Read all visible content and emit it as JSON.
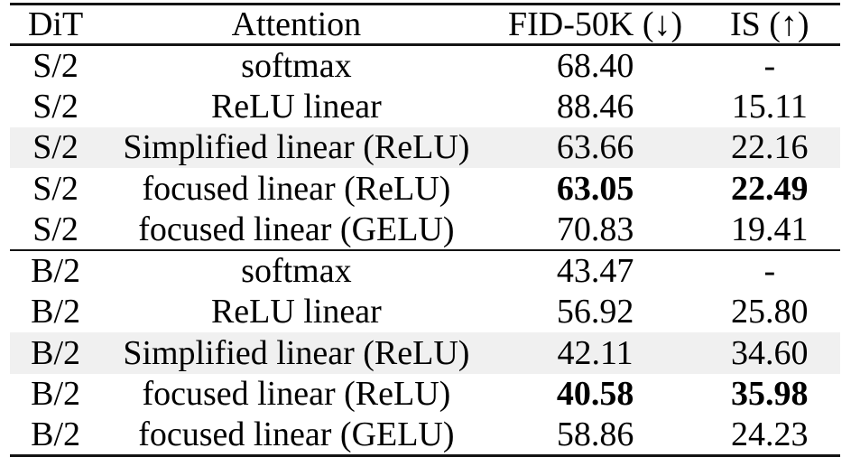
{
  "colors": {
    "rule": "#141414",
    "row_shade": "#f0f0f0",
    "text": "#000000",
    "background": "#ffffff"
  },
  "table": {
    "columns": {
      "dit": "DiT",
      "attention": "Attention",
      "fid": "FID-50K (↓)",
      "is_score": "IS (↑)"
    },
    "rows": [
      {
        "dit": "S/2",
        "attention": "softmax",
        "fid": "68.40",
        "is_score": "-"
      },
      {
        "dit": "S/2",
        "attention": "ReLU linear",
        "fid": "88.46",
        "is_score": "15.11"
      },
      {
        "dit": "S/2",
        "attention": "Simplified linear (ReLU)",
        "fid": "63.66",
        "is_score": "22.16"
      },
      {
        "dit": "S/2",
        "attention": "focused linear (ReLU)",
        "fid": "63.05",
        "is_score": "22.49"
      },
      {
        "dit": "S/2",
        "attention": "focused linear (GELU)",
        "fid": "70.83",
        "is_score": "19.41"
      },
      {
        "dit": "B/2",
        "attention": "softmax",
        "fid": "43.47",
        "is_score": "-"
      },
      {
        "dit": "B/2",
        "attention": "ReLU linear",
        "fid": "56.92",
        "is_score": "25.80"
      },
      {
        "dit": "B/2",
        "attention": "Simplified linear (ReLU)",
        "fid": "42.11",
        "is_score": "34.60"
      },
      {
        "dit": "B/2",
        "attention": "focused linear (ReLU)",
        "fid": "40.58",
        "is_score": "35.98"
      },
      {
        "dit": "B/2",
        "attention": "focused linear (GELU)",
        "fid": "58.86",
        "is_score": "24.23"
      }
    ]
  }
}
